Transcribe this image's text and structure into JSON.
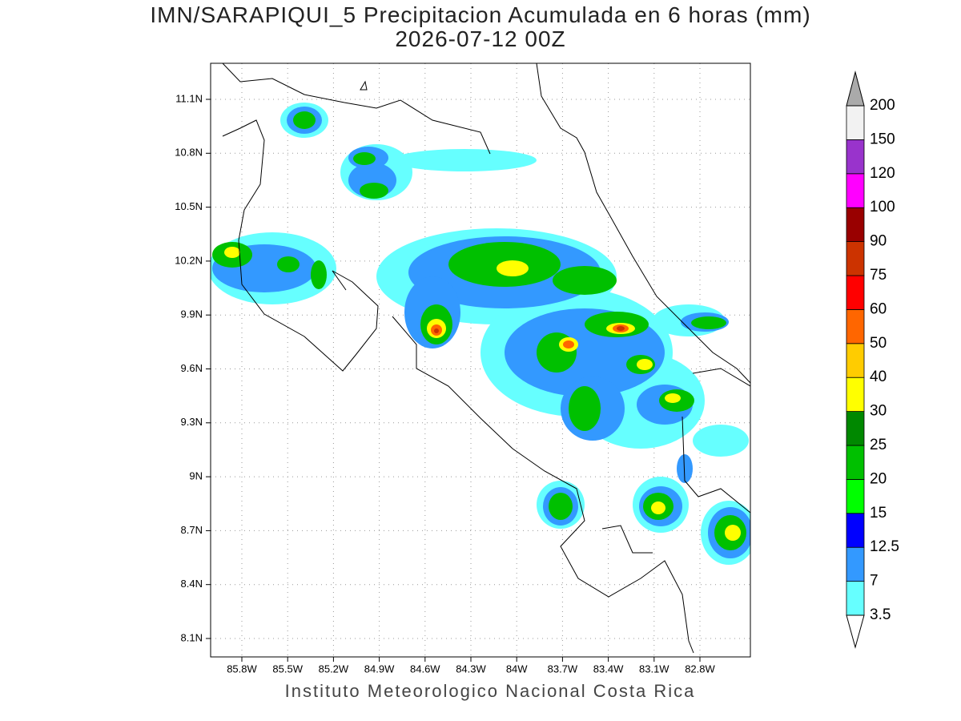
{
  "header": {
    "title": "IMN/SARAPIQUI_5 Precipitacion Acumulada en 6 horas (mm)",
    "subtitle": "2026-07-12 00Z"
  },
  "map": {
    "lat_labels": [
      "11.1N",
      "10.8N",
      "10.5N",
      "10.2N",
      "9.9N",
      "9.6N",
      "9.3N",
      "9N",
      "8.7N",
      "8.4N",
      "8.1N"
    ],
    "lon_labels": [
      "85.8W",
      "85.5W",
      "85.2W",
      "84.9W",
      "84.6W",
      "84.3W",
      "84W",
      "83.7W",
      "83.4W",
      "83.1W",
      "82.8W"
    ]
  },
  "colorbar": {
    "labels": [
      "3.5",
      "7",
      "12.5",
      "15",
      "20",
      "25",
      "30",
      "40",
      "50",
      "60",
      "75",
      "90",
      "100",
      "120",
      "150",
      "200"
    ],
    "colors": [
      "#66ffff",
      "#3399ff",
      "#0000ff",
      "#00ff00",
      "#00c000",
      "#008800",
      "#ffff00",
      "#ffcc00",
      "#ff6600",
      "#ff0000",
      "#cc3300",
      "#990000",
      "#ff00ff",
      "#9933cc",
      "#f2f2f2"
    ],
    "under_color": "#ffffff",
    "over_color": "#aaaaaa"
  },
  "footer": "Instituto Meteorologico Nacional Costa Rica"
}
